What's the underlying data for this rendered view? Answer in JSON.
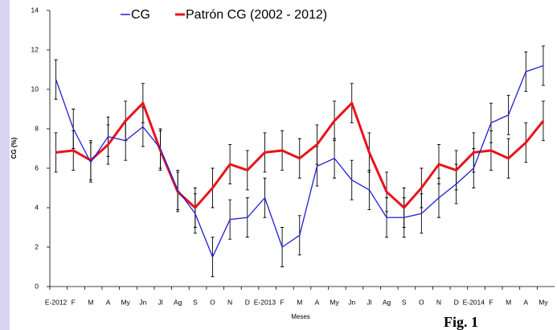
{
  "chart_data": {
    "type": "line",
    "categories": [
      "E-2012",
      "F",
      "M",
      "A",
      "My",
      "Jn",
      "Jl",
      "Ag",
      "S",
      "O",
      "N",
      "D",
      "E-2013",
      "F",
      "M",
      "A",
      "My",
      "Jn",
      "Jl",
      "Ag",
      "S",
      "O",
      "N",
      "D",
      "E-2014",
      "F",
      "M",
      "A",
      "My"
    ],
    "series": [
      {
        "name": "CG",
        "color": "#1f1fd6",
        "values": [
          10.5,
          8.0,
          6.3,
          7.6,
          7.4,
          8.1,
          7.0,
          4.9,
          3.7,
          1.5,
          3.4,
          3.5,
          4.5,
          2.0,
          2.6,
          6.1,
          6.5,
          5.4,
          4.9,
          3.5,
          3.5,
          3.7,
          4.5,
          5.2,
          6.0,
          8.3,
          8.7,
          10.9,
          11.2
        ],
        "errors": [
          1,
          1,
          1,
          1,
          1,
          1,
          1,
          1,
          1,
          1,
          1,
          1,
          1,
          1,
          1,
          1,
          1,
          1,
          1,
          1,
          1,
          1,
          1,
          1,
          1,
          1,
          1,
          1,
          1
        ]
      },
      {
        "name": "Patrón CG (2002 - 2012)",
        "color": "#e8141a",
        "values": [
          6.8,
          6.9,
          6.4,
          7.2,
          8.4,
          9.3,
          6.9,
          4.8,
          4.0,
          5.0,
          6.2,
          5.9,
          6.8,
          6.9,
          6.5,
          7.2,
          8.4,
          9.3,
          6.8,
          4.8,
          4.0,
          5.0,
          6.2,
          5.9,
          6.8,
          6.9,
          6.5,
          7.3,
          8.4
        ],
        "errors": [
          1,
          1,
          1,
          1,
          1,
          1,
          1,
          1,
          1,
          1,
          1,
          1,
          1,
          1,
          1,
          1,
          1,
          1,
          1,
          1,
          1,
          1,
          1,
          1,
          1,
          1,
          1,
          1,
          1
        ]
      }
    ],
    "y_label": "CG (%)",
    "x_label": "Meses",
    "ylim": [
      0,
      14
    ],
    "yticks": [
      0,
      2,
      4,
      6,
      8,
      10,
      12,
      14
    ],
    "grid": false,
    "error_bar_color": "#000000",
    "annotation": "Fig. 1"
  }
}
